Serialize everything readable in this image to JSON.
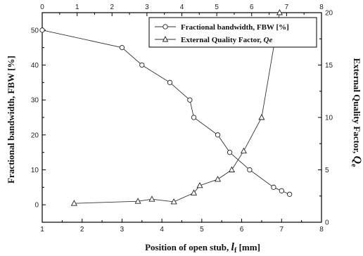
{
  "chart_data": {
    "type": "line",
    "xlabel_prefix": "Position of open stub, ",
    "xlabel_var": "l",
    "xlabel_sub": "f",
    "xlabel_suffix": " [mm]",
    "ylabel_left": "Fractional bandwidth, FBW [%]",
    "ylabel_right_prefix": "External Quality Factor, ",
    "ylabel_right_var": "Q",
    "ylabel_right_sub": "e",
    "xlim": [
      1,
      8
    ],
    "x_ticks": [
      "1",
      "2",
      "3",
      "4",
      "5",
      "6",
      "7",
      "8"
    ],
    "top_xlim": [
      0,
      8
    ],
    "top_x_ticks": [
      "0",
      "1",
      "2",
      "3",
      "4",
      "5",
      "6",
      "7",
      "8"
    ],
    "ylim_left": [
      -5,
      55
    ],
    "y_ticks_left": [
      "0",
      "10",
      "20",
      "30",
      "40",
      "50"
    ],
    "ylim_right": [
      0,
      20
    ],
    "y_ticks_right": [
      "0",
      "5",
      "10",
      "15",
      "20"
    ],
    "grid": false,
    "legend_position": "top-right",
    "series": [
      {
        "name": "Fractional bandwidth, FBW [%]",
        "axis": "left",
        "marker": "circle",
        "x": [
          1.0,
          3.0,
          3.5,
          4.2,
          4.7,
          4.8,
          5.4,
          5.7,
          6.2,
          6.8,
          7.0,
          7.2
        ],
        "y": [
          50,
          45,
          40,
          35,
          30,
          25,
          20,
          15,
          10,
          5,
          4,
          3
        ]
      },
      {
        "name_prefix": "External Quality Factor, ",
        "name_var": "Qe",
        "axis": "right",
        "marker": "triangle",
        "x": [
          1.8,
          3.4,
          3.75,
          4.3,
          4.8,
          4.95,
          5.4,
          5.75,
          6.05,
          6.5,
          6.95
        ],
        "y": [
          1.8,
          2.0,
          2.2,
          1.95,
          2.8,
          3.5,
          4.1,
          5.0,
          6.8,
          10.0,
          20.0
        ]
      }
    ]
  }
}
